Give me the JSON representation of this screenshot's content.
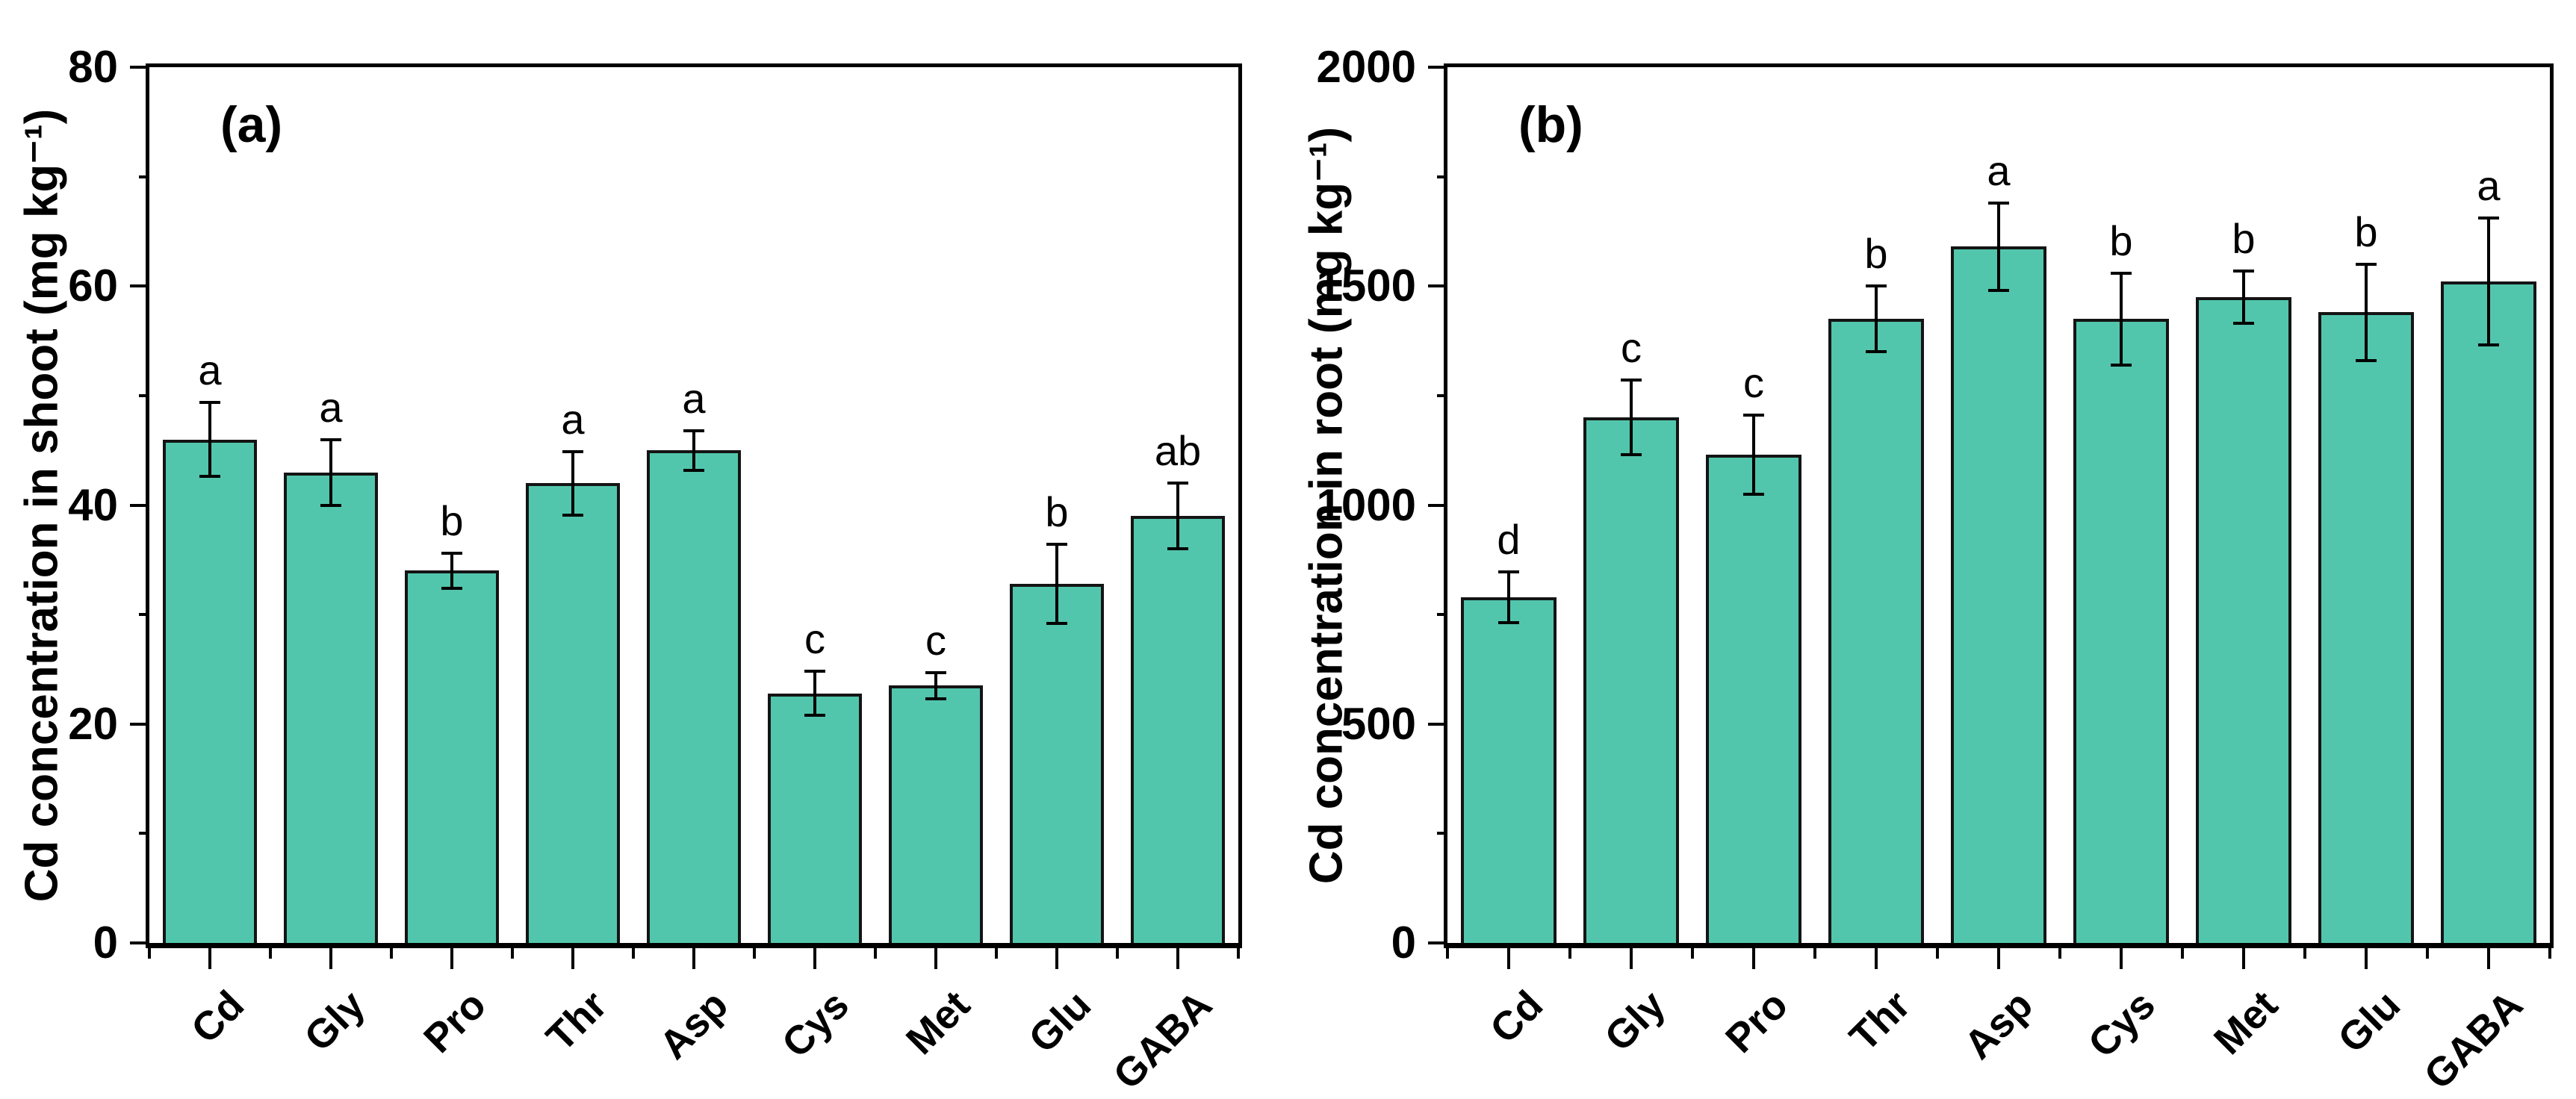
{
  "figure": {
    "background": "#ffffff",
    "bar_fill": "#52C6AC",
    "bar_border": "#141414",
    "axis_color": "#000000",
    "error_bar_color": "#000000"
  },
  "chart_data": [
    {
      "type": "bar",
      "panel_tag": "(a)",
      "title": "",
      "xlabel": "",
      "ylabel": "Cd concentration in shoot (mg kg⁻¹)",
      "categories": [
        "Cd",
        "Gly",
        "Pro",
        "Thr",
        "Asp",
        "Cys",
        "Met",
        "Glu",
        "GABA"
      ],
      "values": [
        46,
        43,
        34,
        42,
        45,
        22.8,
        23.5,
        32.8,
        39
      ],
      "errors": [
        3.4,
        3,
        1.6,
        2.9,
        1.8,
        2,
        1.2,
        3.6,
        3
      ],
      "sig_letters": [
        "a",
        "a",
        "b",
        "a",
        "a",
        "c",
        "c",
        "b",
        "ab"
      ],
      "ylim": [
        0,
        80
      ],
      "yticks": [
        0,
        20,
        40,
        60,
        80
      ],
      "yticks_minor": [
        10,
        30,
        50,
        70
      ],
      "grid": false,
      "legend": "none"
    },
    {
      "type": "bar",
      "panel_tag": "(b)",
      "title": "",
      "xlabel": "",
      "ylabel": "Cd concentration in root (mg kg⁻¹)",
      "categories": [
        "Cd",
        "Gly",
        "Pro",
        "Thr",
        "Asp",
        "Cys",
        "Met",
        "Glu",
        "GABA"
      ],
      "values": [
        790,
        1200,
        1115,
        1425,
        1590,
        1425,
        1475,
        1440,
        1510
      ],
      "errors": [
        58,
        85,
        90,
        75,
        100,
        105,
        60,
        110,
        145
      ],
      "sig_letters": [
        "d",
        "c",
        "c",
        "b",
        "a",
        "b",
        "b",
        "b",
        "a"
      ],
      "ylim": [
        0,
        2000
      ],
      "yticks": [
        0,
        500,
        1000,
        1500,
        2000
      ],
      "yticks_minor": [
        250,
        750,
        1250,
        1750
      ],
      "grid": false,
      "legend": "none"
    }
  ]
}
